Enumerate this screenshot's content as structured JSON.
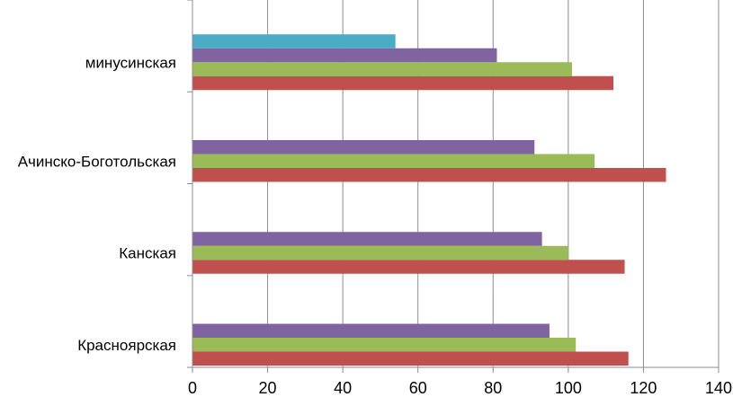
{
  "chart_data": {
    "type": "bar",
    "orientation": "horizontal",
    "title": "",
    "xlabel": "",
    "ylabel": "",
    "xlim": [
      0,
      140
    ],
    "x_ticks": [
      0,
      20,
      40,
      60,
      80,
      100,
      120,
      140
    ],
    "x_tick_labels": [
      "0",
      "20",
      "40",
      "60",
      "80",
      "100",
      "120",
      "140"
    ],
    "grid": "vertical",
    "legend": "none",
    "categories": [
      "Красноярская",
      "Канская",
      "Ачинско-Боготольская",
      "минусинская"
    ],
    "series": [
      {
        "color": "#C0504D",
        "values": [
          116,
          115,
          126,
          112
        ]
      },
      {
        "color": "#9BBB59",
        "values": [
          102,
          100,
          107,
          101
        ]
      },
      {
        "color": "#8064A2",
        "values": [
          95,
          93,
          91,
          81
        ]
      },
      {
        "color": "#4BACC6",
        "values": [
          null,
          null,
          null,
          54
        ]
      }
    ]
  }
}
